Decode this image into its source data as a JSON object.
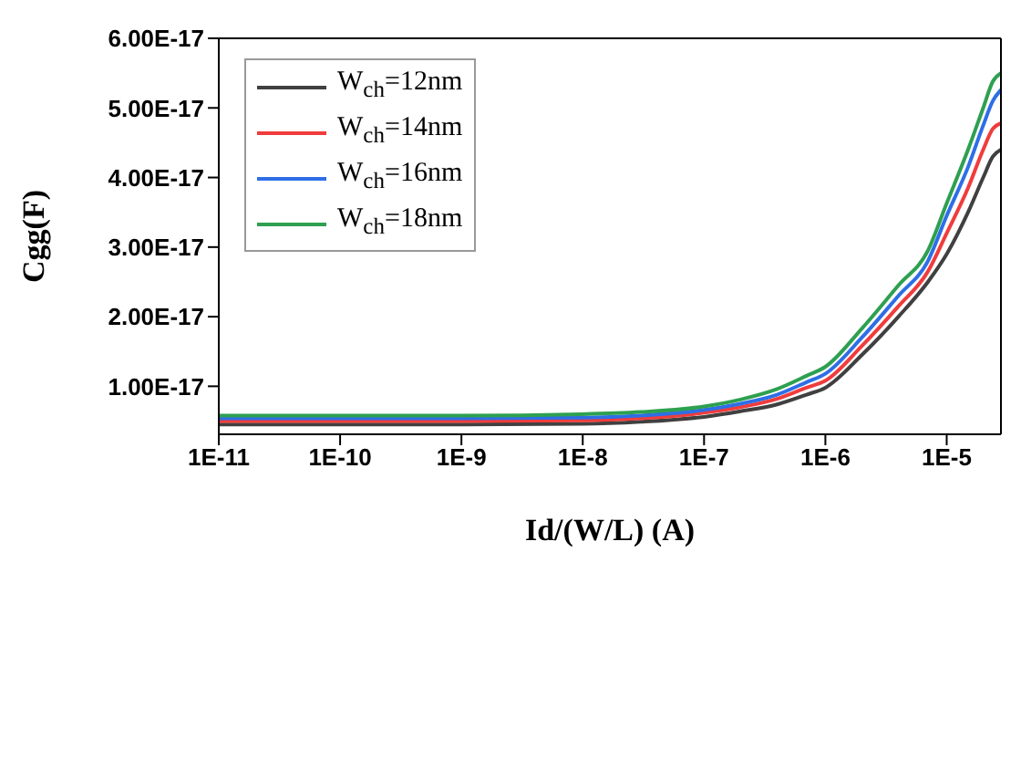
{
  "chart_data": {
    "type": "line",
    "xlabel": "Id/(W/L) (A)",
    "ylabel": "Cgg(F)",
    "log": "x",
    "x": [
      1e-11,
      1e-10,
      1e-09,
      1e-08,
      3e-08,
      1e-07,
      2e-07,
      4e-07,
      7e-07,
      1e-06,
      2e-06,
      4e-06,
      7e-06,
      1e-05,
      1.5e-05,
      2e-05,
      2.4e-05,
      2.8e-05
    ],
    "series": [
      {
        "name": "W$_{ch}$=12nm",
        "color": "#404040",
        "values": [
          4.5e-18,
          4.5e-18,
          4.5e-18,
          4.6e-18,
          4.9e-18,
          5.6e-18,
          6.4e-18,
          7.4e-18,
          8.8e-18,
          9.8e-18,
          1.45e-17,
          2e-17,
          2.5e-17,
          2.9e-17,
          3.5e-17,
          4e-17,
          4.3e-17,
          4.4e-17
        ]
      },
      {
        "name": "W$_{ch}$=14nm",
        "color": "#f03c3c",
        "values": [
          5e-18,
          5e-18,
          5e-18,
          5.1e-18,
          5.4e-18,
          6.2e-18,
          7e-18,
          8.2e-18,
          9.8e-18,
          1.08e-17,
          1.58e-17,
          2.15e-17,
          2.65e-17,
          3.2e-17,
          3.85e-17,
          4.4e-17,
          4.7e-17,
          4.78e-17
        ]
      },
      {
        "name": "W$_{ch}$=16nm",
        "color": "#2e6ee6",
        "values": [
          5.4e-18,
          5.4e-18,
          5.4e-18,
          5.5e-18,
          5.8e-18,
          6.6e-18,
          7.5e-18,
          8.8e-18,
          1.06e-17,
          1.18e-17,
          1.7e-17,
          2.3e-17,
          2.8e-17,
          3.45e-17,
          4.15e-17,
          4.75e-17,
          5.1e-17,
          5.26e-17
        ]
      },
      {
        "name": "W$_{ch}$=18nm",
        "color": "#2ea050",
        "values": [
          5.8e-18,
          5.8e-18,
          5.8e-18,
          6e-18,
          6.3e-18,
          7.1e-18,
          8.1e-18,
          9.6e-18,
          1.15e-17,
          1.28e-17,
          1.83e-17,
          2.45e-17,
          2.95e-17,
          3.63e-17,
          4.4e-17,
          5e-17,
          5.38e-17,
          5.5e-17
        ]
      }
    ],
    "xlim": [
      1e-11,
      2.8e-05
    ],
    "xticks": [
      {
        "value": 1e-11,
        "label": "1E-11"
      },
      {
        "value": 1e-10,
        "label": "1E-10"
      },
      {
        "value": 1e-09,
        "label": "1E-9"
      },
      {
        "value": 1e-08,
        "label": "1E-8"
      },
      {
        "value": 1e-07,
        "label": "1E-7"
      },
      {
        "value": 1e-06,
        "label": "1E-6"
      },
      {
        "value": 1e-05,
        "label": "1E-5"
      }
    ],
    "ylim": [
      3.1e-18,
      6e-17
    ],
    "yticks": [
      {
        "value": 1e-17,
        "label": "1.00E-17"
      },
      {
        "value": 2e-17,
        "label": "2.00E-17"
      },
      {
        "value": 3e-17,
        "label": "3.00E-17"
      },
      {
        "value": 4e-17,
        "label": "4.00E-17"
      },
      {
        "value": 5e-17,
        "label": "5.00E-17"
      },
      {
        "value": 6e-17,
        "label": "6.00E-17"
      }
    ],
    "grid": false,
    "legend": "top left",
    "line_style": "solid",
    "marker": "none"
  }
}
